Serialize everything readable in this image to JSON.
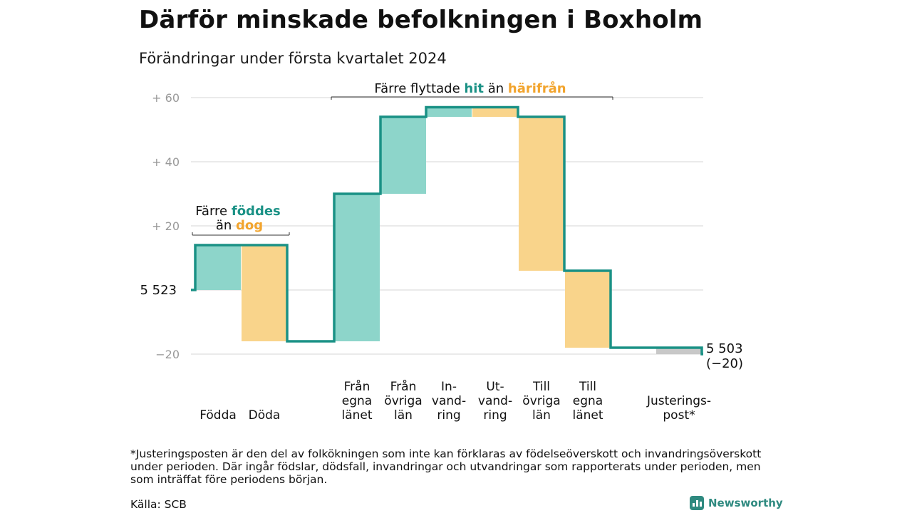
{
  "title": "Därför minskade befolkningen i Boxholm",
  "subtitle": "Förändringar under första kvartalet 2024",
  "colors": {
    "teal": "#1a9185",
    "teal_light": "#8dd5ca",
    "orange": "#f2a42d",
    "orange_light": "#f9d48b",
    "adjust": "#c8c8c8",
    "grid": "#dddddd"
  },
  "chart_data": {
    "type": "waterfall",
    "start": {
      "value": 5523,
      "label": "5  523"
    },
    "end": {
      "value": 5503,
      "label": "5 503",
      "change_label": "(−20)"
    },
    "y_axis": {
      "min": -20,
      "max": 60,
      "ticks": [
        {
          "value": 60,
          "label": "+  60"
        },
        {
          "value": 40,
          "label": "+  40"
        },
        {
          "value": 20,
          "label": "+  20"
        },
        {
          "value": -20,
          "label": "−20"
        }
      ]
    },
    "steps": [
      {
        "key": "fodda",
        "label": [
          "",
          "",
          "Födda"
        ],
        "delta": 14,
        "kind": "in"
      },
      {
        "key": "doda",
        "label": [
          "",
          "",
          "Döda"
        ],
        "delta": -30,
        "kind": "out"
      },
      {
        "key": "fran_egna",
        "label": [
          "Från",
          "egna",
          "länet"
        ],
        "delta": 46,
        "kind": "in"
      },
      {
        "key": "fran_ovriga",
        "label": [
          "Från",
          "övriga",
          "län"
        ],
        "delta": 24,
        "kind": "in"
      },
      {
        "key": "invandring",
        "label": [
          "In-",
          "vand-",
          "ring"
        ],
        "delta": 3,
        "kind": "in"
      },
      {
        "key": "utvandring",
        "label": [
          "Ut-",
          "vand-",
          "ring"
        ],
        "delta": -3,
        "kind": "out"
      },
      {
        "key": "till_ovriga",
        "label": [
          "Till",
          "övriga",
          "län"
        ],
        "delta": -48,
        "kind": "out"
      },
      {
        "key": "till_egna",
        "label": [
          "Till",
          "egna",
          "länet"
        ],
        "delta": -24,
        "kind": "out"
      },
      {
        "key": "justering",
        "label": [
          "",
          "Justerings-",
          "post*"
        ],
        "delta": -2,
        "kind": "adjust"
      }
    ],
    "annotations": [
      {
        "parts": [
          {
            "text": "Färre ",
            "style": "plain"
          },
          {
            "text": "föddes",
            "style": "teal"
          }
        ],
        "parts2": [
          {
            "text": "än ",
            "style": "plain"
          },
          {
            "text": "dog",
            "style": "orange"
          }
        ]
      },
      {
        "parts": [
          {
            "text": "Färre flyttade ",
            "style": "plain"
          },
          {
            "text": "hit",
            "style": "teal"
          },
          {
            "text": "  än ",
            "style": "plain"
          },
          {
            "text": "härifrån",
            "style": "orange"
          }
        ]
      }
    ]
  },
  "footnote": "*Justeringsposten är den del av folkökningen som inte kan förklaras av födelseöverskott och invandringsöverskott under perioden. Där ingår födslar, dödsfall, invandringar och utvandringar som rapporterats under perioden, men som inträffat före periodens början.",
  "source": "Källa: SCB",
  "brand": "Newsworthy"
}
